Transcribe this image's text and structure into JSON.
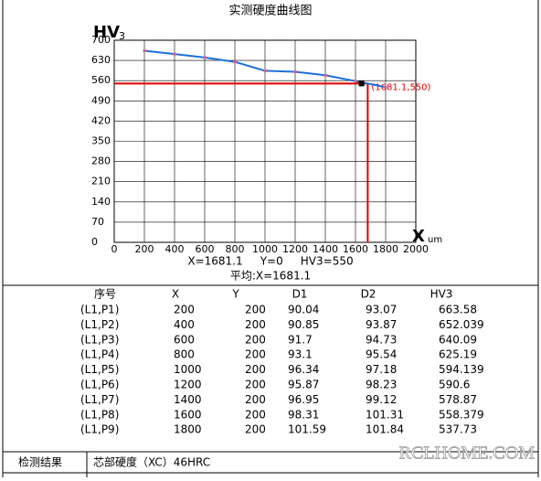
{
  "chart_data": {
    "type": "line",
    "title": "实测硬度曲线图",
    "y_label": "HV",
    "y_label_sub": "3",
    "x_label": "X",
    "x_unit": "um",
    "x": [
      200,
      400,
      600,
      800,
      1000,
      1200,
      1400,
      1600,
      1800
    ],
    "series": [
      {
        "name": "HV3",
        "color": "#1f6fd8",
        "values": [
          663.58,
          652.039,
          640.09,
          625.19,
          594.139,
          590.6,
          578.87,
          558.379,
          537.73
        ]
      }
    ],
    "xlim": [
      0,
      2000
    ],
    "xticks": [
      0,
      200,
      400,
      600,
      800,
      1000,
      1200,
      1400,
      1600,
      1800,
      2000
    ],
    "ylim": [
      0,
      700
    ],
    "yticks": [
      0,
      70,
      140,
      210,
      280,
      350,
      420,
      490,
      560,
      630,
      700
    ],
    "grid": true,
    "crosshair": {
      "x": 1681.1,
      "y": 550,
      "color": "#e00000"
    },
    "crosshair_label": "(1681.1,550)",
    "result_line": "X=1681.1     Y=0     HV3=550",
    "average_line": "平均:X=1681.1"
  },
  "table": {
    "header": [
      "序号",
      "X",
      "Y",
      "D1",
      "D2",
      "HV3"
    ],
    "rows": [
      [
        "(L1,P1)",
        200,
        200,
        90.04,
        93.07,
        663.58
      ],
      [
        "(L1,P2)",
        400,
        200,
        90.85,
        93.87,
        652.039
      ],
      [
        "(L1,P3)",
        600,
        200,
        91.7,
        94.73,
        640.09
      ],
      [
        "(L1,P4)",
        800,
        200,
        93.1,
        95.54,
        625.19
      ],
      [
        "(L1,P5)",
        1000,
        200,
        96.34,
        97.18,
        594.139
      ],
      [
        "(L1,P6)",
        1200,
        200,
        95.87,
        98.23,
        590.6
      ],
      [
        "(L1,P7)",
        1400,
        200,
        96.95,
        99.12,
        578.87
      ],
      [
        "(L1,P8)",
        1600,
        200,
        98.31,
        101.31,
        558.379
      ],
      [
        "(L1,P9)",
        1800,
        200,
        101.59,
        101.84,
        537.73
      ]
    ]
  },
  "result": {
    "label": "检测结果",
    "text": "芯部硬度（XC）46HRC"
  },
  "watermark": "RCLHOME.COM"
}
